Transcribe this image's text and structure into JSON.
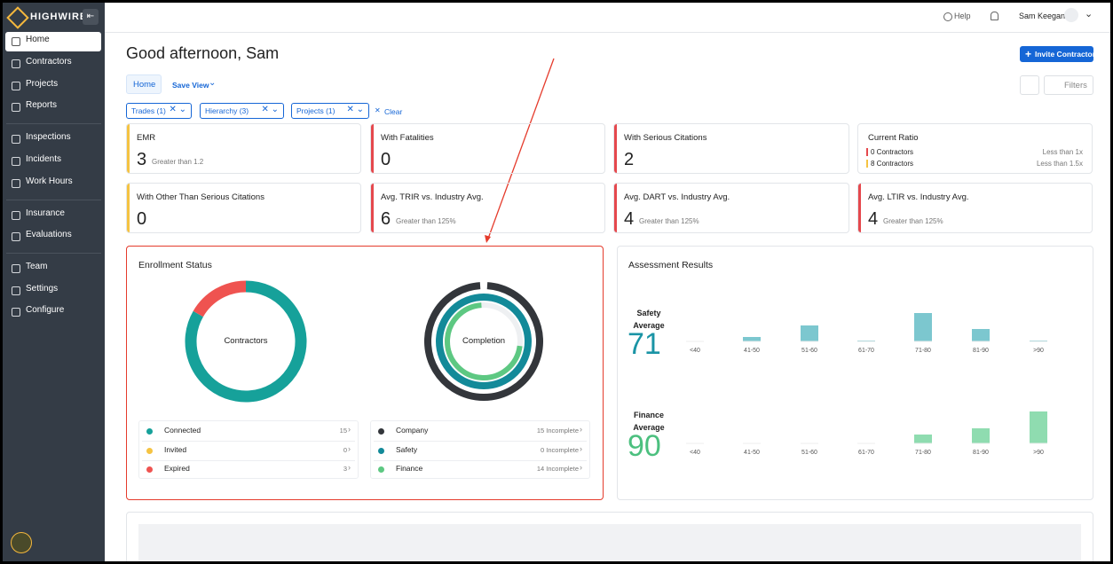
{
  "sidebar": {
    "brand": "HIGHWIRE",
    "nav": [
      "Home",
      "Contractors",
      "Projects",
      "Reports",
      "Inspections",
      "Incidents",
      "Work Hours",
      "Insurance",
      "Evaluations",
      "Team",
      "Settings",
      "Configure"
    ]
  },
  "topbar": {
    "help": "Help",
    "user": "Sam Keegan"
  },
  "header": {
    "greeting": "Good afternoon, Sam",
    "invite": "Invite Contractor",
    "tabs": [
      "Home",
      "Save View"
    ],
    "filters_button": "Filters"
  },
  "filters": {
    "chips": [
      "Trades (1)",
      "Hierarchy (3)",
      "Projects (1)"
    ],
    "clear": "Clear"
  },
  "metrics": [
    {
      "label": "EMR",
      "value": "3",
      "note": "Greater than 1.2",
      "accent": "#f5c342"
    },
    {
      "label": "With Fatalities",
      "value": "0",
      "accent": "#e5484d"
    },
    {
      "label": "With Serious Citations",
      "value": "2",
      "accent": "#e5484d"
    },
    {
      "label": "Current Ratio",
      "rows": [
        {
          "text": "0 Contractors",
          "note": "Less than 1x",
          "color": "#e5484d"
        },
        {
          "text": "8 Contractors",
          "note": "Less than 1.5x",
          "color": "#f5c342"
        }
      ]
    },
    {
      "label": "With Other Than Serious Citations",
      "value": "0",
      "accent": "#f5c342"
    },
    {
      "label": "Avg. TRIR vs. Industry Avg.",
      "value": "6",
      "note": "Greater than 125%",
      "accent": "#e5484d"
    },
    {
      "label": "Avg. DART vs. Industry Avg.",
      "value": "4",
      "note": "Greater than 125%",
      "accent": "#e5484d"
    },
    {
      "label": "Avg. LTIR vs. Industry Avg.",
      "value": "4",
      "note": "Greater than 125%",
      "accent": "#e5484d"
    }
  ],
  "enrollment": {
    "title": "Enrollment Status",
    "donut_label": "Contractors",
    "rings_label": "Completion",
    "status": [
      {
        "name": "Connected",
        "value": 15,
        "color": "#16a19a"
      },
      {
        "name": "Invited",
        "value": 0,
        "color": "#f5c342"
      },
      {
        "name": "Expired",
        "value": 3,
        "color": "#ef5350"
      }
    ],
    "completion": [
      {
        "name": "Company",
        "label": "15 Incomplete",
        "color": "#33363b"
      },
      {
        "name": "Safety",
        "label": "0 Incomplete",
        "color": "#138a99"
      },
      {
        "name": "Finance",
        "label": "14 Incomplete",
        "color": "#5dc882"
      }
    ]
  },
  "assessment": {
    "title": "Assessment Results",
    "categories": [
      "<40",
      "41-50",
      "51-60",
      "61-70",
      "71-80",
      "81-90",
      ">90"
    ],
    "charts": [
      {
        "name": "Safety Average",
        "average": "71",
        "color": "#1a94a5",
        "bar_color": "#7cc7cf",
        "values": [
          0,
          5,
          18,
          1,
          32,
          14,
          1
        ]
      },
      {
        "name": "Finance Average",
        "average": "90",
        "color": "#4cc07f",
        "bar_color": "#8fdcb0",
        "values": [
          0,
          0,
          0,
          0,
          10,
          17,
          36
        ]
      }
    ]
  }
}
